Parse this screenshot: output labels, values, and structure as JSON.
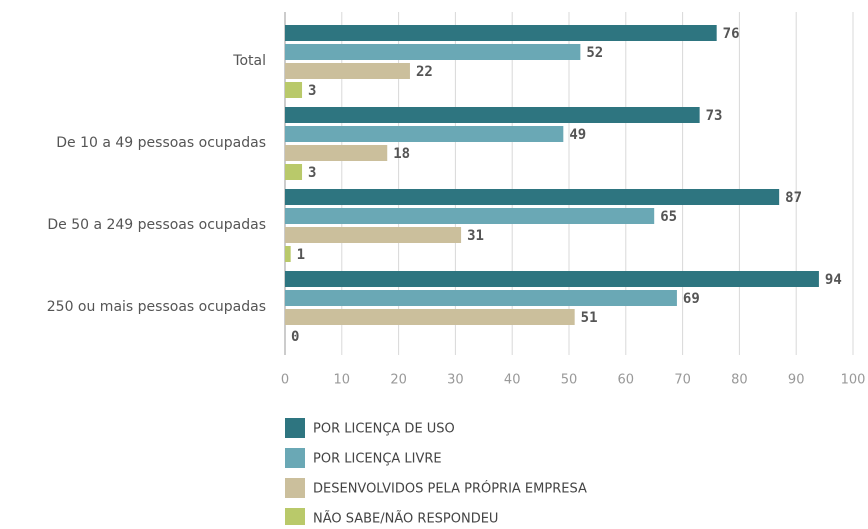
{
  "chart_data": {
    "type": "bar",
    "orientation": "horizontal",
    "categories": [
      "Total",
      "De 10 a 49 pessoas ocupadas",
      "De 50 a 249 pessoas ocupadas",
      "250 ou mais pessoas ocupadas"
    ],
    "series": [
      {
        "name": "POR LICENÇA DE USO",
        "color": "#2e7580",
        "values": [
          76,
          73,
          87,
          94
        ]
      },
      {
        "name": "POR LICENÇA LIVRE",
        "color": "#6aa8b5",
        "values": [
          52,
          49,
          65,
          69
        ]
      },
      {
        "name": "DESENVOLVIDOS PELA PRÓPRIA EMPRESA",
        "color": "#cbbf9c",
        "values": [
          22,
          18,
          31,
          51
        ]
      },
      {
        "name": "NÃO SABE/NÃO RESPONDEU",
        "color": "#b9c96a",
        "values": [
          3,
          3,
          1,
          0
        ]
      }
    ],
    "xlim": [
      0,
      100
    ],
    "xticks": [
      0,
      10,
      20,
      30,
      40,
      50,
      60,
      70,
      80,
      90,
      100
    ],
    "grid": true
  }
}
